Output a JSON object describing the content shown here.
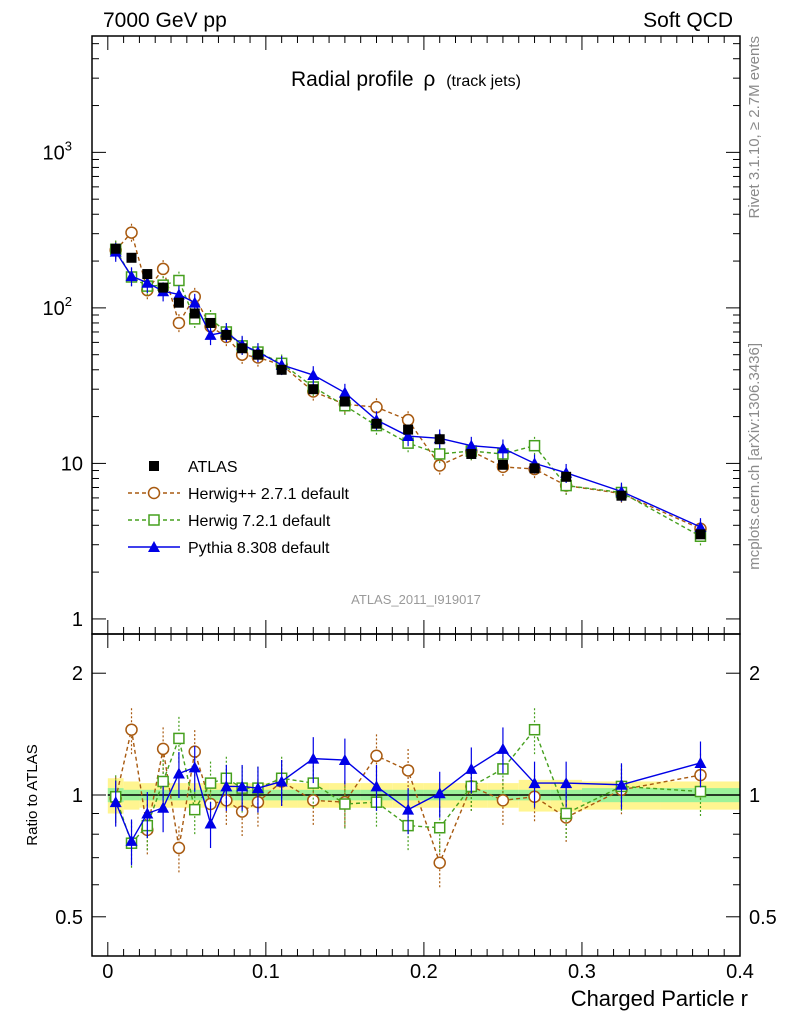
{
  "header": {
    "left": "7000 GeV pp",
    "right": "Soft QCD"
  },
  "side_text": {
    "rivet": "Rivet 3.1.10, ≥ 2.7M events",
    "source": "mcplots.cern.ch [arXiv:1306.3436]"
  },
  "chart_data": [
    {
      "type": "line",
      "panel": "main",
      "title_main": "Radial profile",
      "title_rho": "ρ",
      "title_sub": "(track jets)",
      "analysis_label": "ATLAS_2011_I919017",
      "xlim": [
        -0.01,
        0.4
      ],
      "ylim": [
        0.8,
        5600
      ],
      "yscale": "log",
      "y_ticks": [
        {
          "value": 1,
          "label": "1"
        },
        {
          "value": 10,
          "label": "10"
        },
        {
          "value": 100,
          "label": "10",
          "sup": "2"
        },
        {
          "value": 1000,
          "label": "10",
          "sup": "3"
        }
      ],
      "x": [
        0.005,
        0.015,
        0.025,
        0.035,
        0.045,
        0.055,
        0.065,
        0.075,
        0.085,
        0.095,
        0.11,
        0.13,
        0.15,
        0.17,
        0.19,
        0.21,
        0.23,
        0.25,
        0.27,
        0.29,
        0.325,
        0.375
      ],
      "series": [
        {
          "name": "ATLAS",
          "color": "#000000",
          "marker": "square-filled",
          "line": "none",
          "values": [
            240,
            210,
            165,
            135,
            108,
            92,
            80,
            67,
            55,
            50,
            40,
            30,
            25,
            18,
            16.5,
            14.3,
            11.5,
            9.8,
            9.3,
            8.2,
            6.2,
            3.5
          ]
        },
        {
          "name": "Herwig++ 2.7.1 default",
          "color": "#a85a10",
          "marker": "circle-open",
          "line": "dashed",
          "values": [
            235,
            305,
            130,
            178,
            80,
            118,
            76,
            65,
            50,
            48,
            43,
            29,
            24,
            23,
            19,
            9.7,
            12,
            9.5,
            9.2,
            7.2,
            6.4,
            3.8
          ]
        },
        {
          "name": "Herwig 7.2.1 default",
          "color": "#46a01e",
          "marker": "square-open",
          "line": "dashed",
          "values": [
            238,
            158,
            138,
            140,
            150,
            85,
            85,
            70,
            57,
            52,
            44,
            31,
            23.5,
            17.5,
            13.5,
            11.5,
            12,
            11.5,
            13,
            7.2,
            6.5,
            3.4
          ]
        },
        {
          "name": "Pythia 8.308 default",
          "color": "#0000e6",
          "marker": "triangle-filled",
          "line": "solid",
          "values": [
            230,
            160,
            145,
            128,
            122,
            108,
            67,
            70,
            58,
            52,
            43,
            37,
            28.5,
            19,
            15,
            14.5,
            13,
            12.5,
            10,
            8.7,
            6.6,
            3.9
          ]
        }
      ]
    },
    {
      "type": "line",
      "panel": "ratio",
      "ylabel": "Ratio to ATLAS",
      "xlabel": "Charged Particle r",
      "xlim": [
        -0.01,
        0.4
      ],
      "ylim": [
        0.4,
        2.5
      ],
      "yscale": "log",
      "y_ticks": [
        {
          "value": 0.5,
          "label": "0.5"
        },
        {
          "value": 1,
          "label": "1"
        },
        {
          "value": 2,
          "label": "2"
        }
      ],
      "x_ticks": [
        {
          "value": 0,
          "label": "0"
        },
        {
          "value": 0.1,
          "label": "0.1"
        },
        {
          "value": 0.2,
          "label": "0.2"
        },
        {
          "value": 0.3,
          "label": "0.3"
        },
        {
          "value": 0.4,
          "label": "0.4"
        }
      ],
      "x": [
        0.005,
        0.015,
        0.025,
        0.035,
        0.045,
        0.055,
        0.065,
        0.075,
        0.085,
        0.095,
        0.11,
        0.13,
        0.15,
        0.17,
        0.19,
        0.21,
        0.23,
        0.25,
        0.27,
        0.29,
        0.325,
        0.375
      ],
      "band_edges": [
        0,
        0.01,
        0.02,
        0.03,
        0.04,
        0.05,
        0.06,
        0.07,
        0.08,
        0.09,
        0.1,
        0.12,
        0.14,
        0.16,
        0.18,
        0.2,
        0.22,
        0.24,
        0.26,
        0.28,
        0.3,
        0.35,
        0.4
      ],
      "band_stat": [
        0.04,
        0.03,
        0.03,
        0.03,
        0.03,
        0.03,
        0.03,
        0.03,
        0.03,
        0.03,
        0.03,
        0.03,
        0.03,
        0.03,
        0.03,
        0.03,
        0.03,
        0.03,
        0.03,
        0.03,
        0.04,
        0.04
      ],
      "band_total": [
        0.1,
        0.08,
        0.07,
        0.07,
        0.07,
        0.07,
        0.07,
        0.07,
        0.07,
        0.07,
        0.07,
        0.07,
        0.07,
        0.07,
        0.07,
        0.07,
        0.07,
        0.07,
        0.09,
        0.09,
        0.08,
        0.08
      ],
      "series": [
        {
          "name": "Herwig++ 2.7.1 default",
          "color": "#a85a10",
          "marker": "circle-open",
          "line": "dashed",
          "values": [
            0.98,
            1.45,
            0.82,
            1.3,
            0.74,
            1.28,
            0.95,
            0.97,
            0.91,
            0.96,
            1.08,
            0.97,
            0.96,
            1.25,
            1.15,
            0.68,
            1.05,
            0.97,
            0.99,
            0.88,
            1.03,
            1.12
          ]
        },
        {
          "name": "Herwig 7.2.1 default",
          "color": "#46a01e",
          "marker": "square-open",
          "line": "dashed",
          "values": [
            0.99,
            0.76,
            0.84,
            1.08,
            1.38,
            0.92,
            1.07,
            1.1,
            1.04,
            1.04,
            1.1,
            1.07,
            0.95,
            0.96,
            0.84,
            0.83,
            1.05,
            1.16,
            1.45,
            0.9,
            1.05,
            1.02
          ]
        },
        {
          "name": "Pythia 8.308 default",
          "color": "#0000e6",
          "marker": "triangle-filled",
          "line": "solid",
          "values": [
            0.96,
            0.77,
            0.9,
            0.93,
            1.13,
            1.17,
            0.85,
            1.05,
            1.05,
            1.04,
            1.08,
            1.23,
            1.22,
            1.05,
            0.92,
            1.01,
            1.16,
            1.3,
            1.07,
            1.07,
            1.06,
            1.2
          ]
        }
      ]
    }
  ]
}
